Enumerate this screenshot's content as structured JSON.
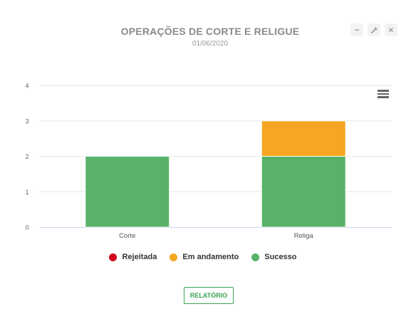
{
  "header": {
    "title": "OPERAÇÕES DE CORTE E RELIGUE",
    "subtitle": "01/06/2020",
    "controls": [
      {
        "icon": "minimize-icon",
        "glyph": "−"
      },
      {
        "icon": "wrench-icon",
        "glyph": "✎"
      },
      {
        "icon": "close-icon",
        "glyph": "×"
      }
    ]
  },
  "chart_data": {
    "type": "bar",
    "stacked": true,
    "categories": [
      "Corte",
      "Religa"
    ],
    "series": [
      {
        "name": "Rejeitada",
        "values": [
          0,
          0
        ],
        "color": "#d0021b"
      },
      {
        "name": "Em andamento",
        "values": [
          0,
          1
        ],
        "color": "#f5a623"
      },
      {
        "name": "Sucesso",
        "values": [
          2,
          2
        ],
        "color": "#58b368"
      }
    ],
    "yticks": [
      0,
      1,
      2,
      3,
      4
    ],
    "ylim": [
      0,
      4
    ],
    "grid": true,
    "legend_position": "bottom"
  },
  "footer": {
    "report_label": "RELATÓRIO"
  },
  "colors": {
    "accent": "#3aa44f",
    "grid": "#e6e6e6",
    "axis": "#ccd6eb"
  }
}
